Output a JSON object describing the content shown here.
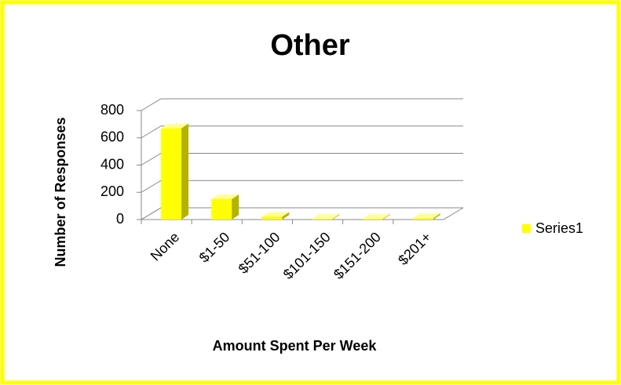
{
  "chart_data": {
    "type": "bar3d",
    "title": "Other",
    "categories": [
      "None",
      "$1-50",
      "$51-100",
      "$101-150",
      "$151-200",
      "$201+"
    ],
    "series": [
      {
        "name": "Series1",
        "color": "#ffff00",
        "values": [
          670,
          150,
          20,
          5,
          5,
          10
        ]
      }
    ],
    "x_label": "Amount Spent Per Week",
    "y_label": "Number of Responses",
    "ylim": [
      0,
      800
    ],
    "yticks": [
      0,
      200,
      400,
      600,
      800
    ],
    "grid": true,
    "legend": "right"
  }
}
